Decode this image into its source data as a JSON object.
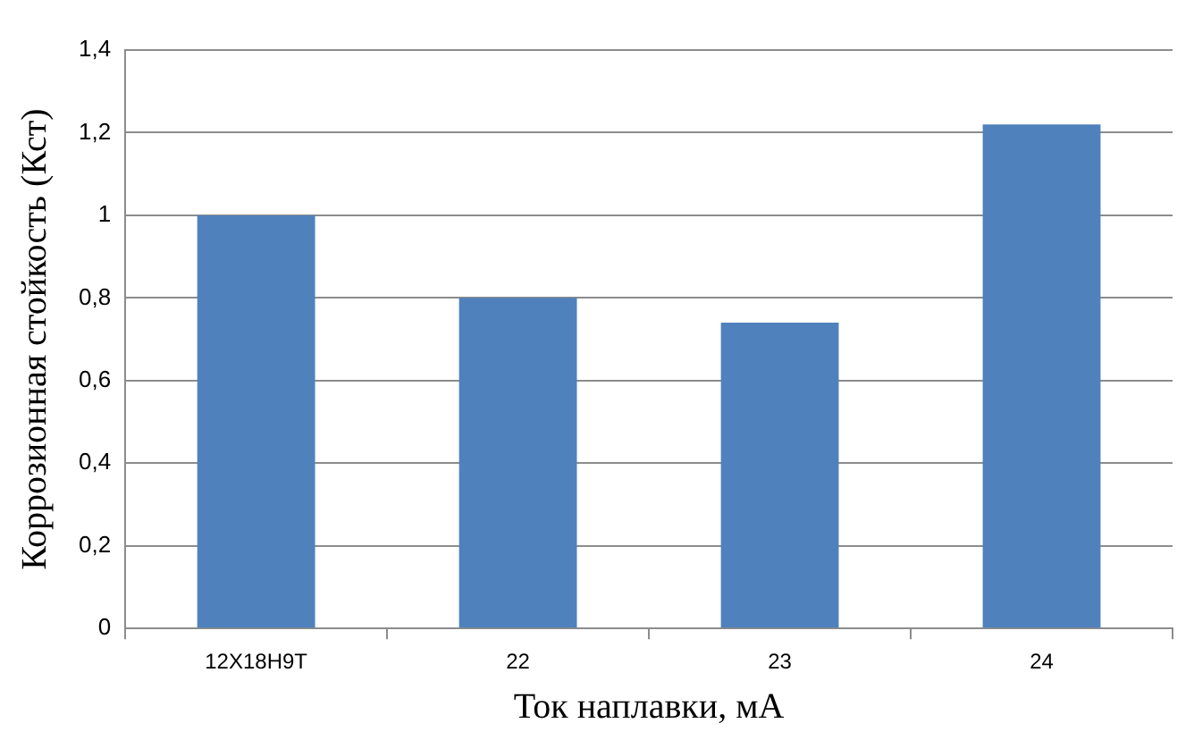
{
  "chart_data": {
    "type": "bar",
    "xlabel": "Ток наплавки, мА",
    "ylabel": "Коррозионная стойкость (Кст)",
    "categories": [
      "12Х18Н9Т",
      "22",
      "23",
      "24"
    ],
    "values": [
      1.0,
      0.8,
      0.74,
      1.22
    ],
    "color": "#4f81bd",
    "ylim": [
      0,
      1.4
    ],
    "yticks": [
      0,
      {
        "value": 0.2,
        "label": "0,2"
      },
      {
        "value": 0.4,
        "label": "0,4"
      },
      {
        "value": 0.6,
        "label": "0,6"
      },
      {
        "value": 0.8,
        "label": "0,8"
      },
      1,
      {
        "value": 1.2,
        "label": "1,2"
      },
      {
        "value": 1.4,
        "label": "1,4"
      }
    ],
    "grid": "y"
  }
}
